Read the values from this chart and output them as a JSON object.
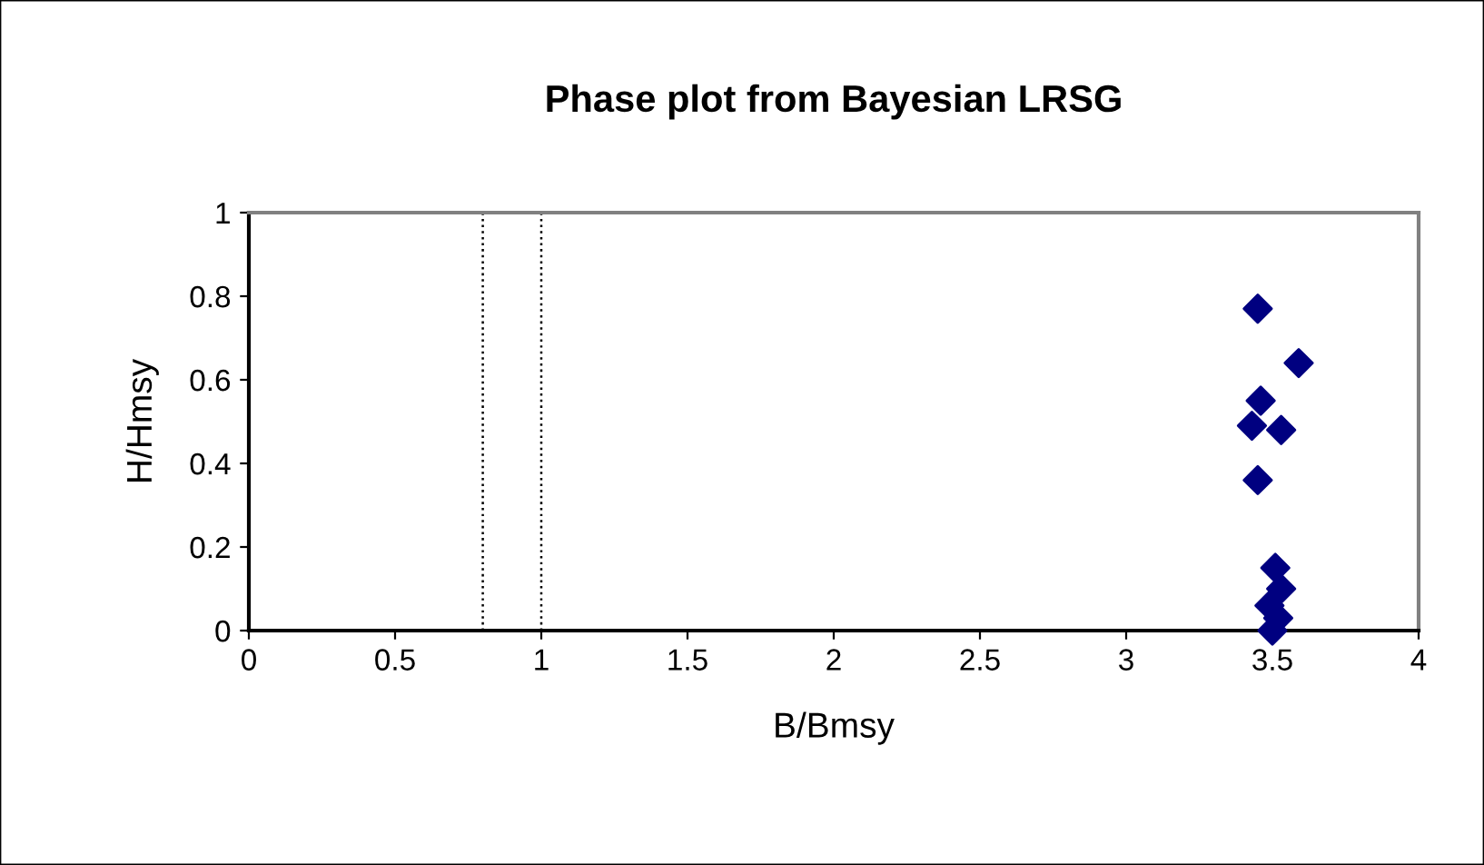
{
  "chart_data": {
    "type": "scatter",
    "title": "Phase plot from Bayesian LRSG",
    "xlabel": "B/Bmsy",
    "ylabel": "H/Hmsy",
    "x": [
      3.45,
      3.59,
      3.46,
      3.43,
      3.53,
      3.45,
      3.51,
      3.53,
      3.49,
      3.52,
      3.5
    ],
    "values": [
      0.77,
      0.64,
      0.55,
      0.49,
      0.48,
      0.36,
      0.15,
      0.1,
      0.06,
      0.03,
      0.0
    ],
    "color": "#000080",
    "marker": "diamond",
    "xlim": [
      0,
      4
    ],
    "xticks": [
      0,
      0.5,
      1,
      1.5,
      2,
      2.5,
      3,
      3.5,
      4
    ],
    "ylim": [
      0,
      1
    ],
    "yticks": [
      0,
      0.2,
      0.4,
      0.6,
      0.8,
      1
    ],
    "ref_lines": [
      {
        "axis": "x",
        "value": 0.8,
        "color": "#000000",
        "line_style": "dotted"
      },
      {
        "axis": "x",
        "value": 1,
        "color": "#000000",
        "line_style": "dotted"
      }
    ],
    "grid": false,
    "legend": false
  }
}
